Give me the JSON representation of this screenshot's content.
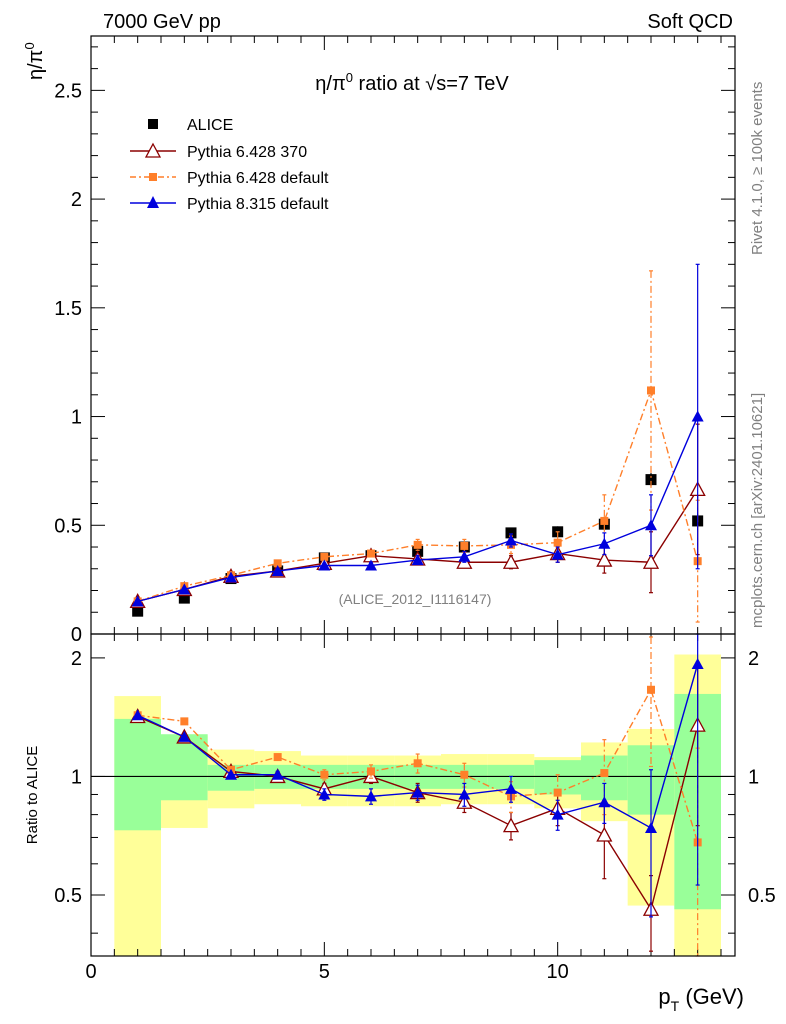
{
  "header": {
    "left": "7000 GeV pp",
    "right": "Soft QCD"
  },
  "side_labels": {
    "rivet": "Rivet 4.1.0, ≥ 100k events",
    "mcplots": "mcplots.cern.ch [arXiv:2401.10621]"
  },
  "colors": {
    "alice": "#000000",
    "py6_370": "#8b0000",
    "py6_default": "#ff7f2a",
    "py8": "#0000dd",
    "band_yellow": "#ffff99",
    "band_green": "#99ff99"
  },
  "chart_data": {
    "type": "scatter",
    "title_main": "η/π⁰ ratio at √s=7 TeV",
    "title_parts": {
      "pre": "η/π",
      "sup": "0",
      "mid": " ratio at ",
      "root": "√",
      "post": "s=7 TeV"
    },
    "ylabel_main": {
      "num": "η/π",
      "sup": "0"
    },
    "ylabel_ratio": "Ratio to ALICE",
    "xlabel": {
      "main": "p",
      "sub": "T",
      "unit": " (GeV)"
    },
    "watermark": "(ALICE_2012_I1116147)",
    "xlim": [
      0,
      13.8
    ],
    "ylim_main": [
      0,
      2.75
    ],
    "ylim_ratio": [
      0.35,
      2.3
    ],
    "x_ticks": [
      0,
      5,
      10
    ],
    "y_ticks_main": [
      0,
      0.5,
      1,
      1.5,
      2,
      2.5
    ],
    "y_tick_labels_main": [
      "0",
      "0.5",
      "1",
      "1.5",
      "2",
      "2.5"
    ],
    "y_ticks_ratio": [
      0.5,
      1,
      2
    ],
    "y_tick_labels_ratio": [
      "0.5",
      "1",
      "2"
    ],
    "legend": [
      {
        "label": "ALICE",
        "marker": "square-filled",
        "color": "#000000"
      },
      {
        "label": "Pythia 6.428 370",
        "marker": "triangle-open",
        "color": "#8b0000"
      },
      {
        "label": "Pythia 6.428 default",
        "marker": "square-small",
        "color": "#ff7f2a"
      },
      {
        "label": "Pythia 8.315 default",
        "marker": "triangle-filled",
        "color": "#0000dd"
      }
    ],
    "series": [
      {
        "name": "ALICE",
        "x": [
          1,
          2,
          3,
          4,
          5,
          6,
          7,
          8,
          9,
          10,
          11,
          12,
          13
        ],
        "y": [
          0.105,
          0.165,
          0.255,
          0.29,
          0.35,
          0.36,
          0.38,
          0.4,
          0.465,
          0.47,
          0.505,
          0.71,
          0.52
        ],
        "err": [
          0.01,
          0.01,
          0.01,
          0.01,
          0.015,
          0.015,
          0.02,
          0.02,
          0.02,
          0.025,
          0.025,
          0.03,
          0.03
        ]
      },
      {
        "name": "Pythia 6.428 370",
        "x": [
          1,
          2,
          3,
          4,
          5,
          6,
          7,
          8,
          9,
          10,
          11,
          12,
          13
        ],
        "y": [
          0.15,
          0.205,
          0.265,
          0.29,
          0.325,
          0.36,
          0.345,
          0.33,
          0.33,
          0.37,
          0.34,
          0.33,
          0.665
        ],
        "err": [
          0.005,
          0.005,
          0.005,
          0.005,
          0.01,
          0.015,
          0.02,
          0.025,
          0.03,
          0.04,
          0.06,
          0.14,
          0.3
        ]
      },
      {
        "name": "Pythia 6.428 default",
        "x": [
          1,
          2,
          3,
          4,
          5,
          6,
          7,
          8,
          9,
          10,
          11,
          12,
          13
        ],
        "y": [
          0.15,
          0.22,
          0.27,
          0.325,
          0.355,
          0.37,
          0.41,
          0.405,
          0.41,
          0.42,
          0.52,
          1.12,
          0.335
        ],
        "err": [
          0.005,
          0.005,
          0.005,
          0.01,
          0.01,
          0.015,
          0.025,
          0.03,
          0.04,
          0.05,
          0.12,
          0.55,
          0.28
        ]
      },
      {
        "name": "Pythia 8.315 default",
        "x": [
          1,
          2,
          3,
          4,
          5,
          6,
          7,
          8,
          9,
          10,
          11,
          12,
          13
        ],
        "y": [
          0.15,
          0.205,
          0.26,
          0.29,
          0.315,
          0.315,
          0.34,
          0.355,
          0.43,
          0.365,
          0.415,
          0.5,
          1.0
        ],
        "err": [
          0.005,
          0.005,
          0.005,
          0.01,
          0.01,
          0.015,
          0.02,
          0.025,
          0.03,
          0.035,
          0.05,
          0.14,
          0.7
        ]
      }
    ],
    "ratio_series": [
      {
        "name": "Pythia 6.428 370",
        "x": [
          1,
          2,
          3,
          4,
          5,
          6,
          7,
          8,
          9,
          10,
          11,
          12,
          13
        ],
        "y": [
          1.42,
          1.26,
          1.03,
          1.0,
          0.93,
          1.0,
          0.91,
          0.86,
          0.75,
          0.83,
          0.71,
          0.46,
          1.35
        ],
        "err": [
          0.01,
          0.01,
          0.01,
          0.02,
          0.03,
          0.04,
          0.05,
          0.05,
          0.06,
          0.08,
          0.16,
          0.1,
          0.6
        ]
      },
      {
        "name": "Pythia 6.428 default",
        "x": [
          1,
          2,
          3,
          4,
          5,
          6,
          7,
          8,
          9,
          10,
          11,
          12,
          13
        ],
        "y": [
          1.43,
          1.38,
          1.04,
          1.12,
          1.01,
          1.03,
          1.08,
          1.01,
          0.89,
          0.91,
          1.02,
          1.66,
          0.68
        ],
        "err": [
          0.01,
          0.01,
          0.01,
          0.02,
          0.03,
          0.04,
          0.06,
          0.07,
          0.08,
          0.1,
          0.22,
          0.6,
          0.5
        ]
      },
      {
        "name": "Pythia 8.315 default",
        "x": [
          1,
          2,
          3,
          4,
          5,
          6,
          7,
          8,
          9,
          10,
          11,
          12,
          13
        ],
        "y": [
          1.43,
          1.26,
          1.01,
          1.01,
          0.9,
          0.89,
          0.91,
          0.9,
          0.93,
          0.8,
          0.86,
          0.74,
          1.93
        ],
        "err": [
          0.01,
          0.01,
          0.01,
          0.02,
          0.03,
          0.04,
          0.04,
          0.06,
          0.07,
          0.07,
          0.1,
          0.3,
          1.4
        ]
      }
    ],
    "bands": {
      "bins": [
        [
          0.5,
          1.5
        ],
        [
          1.5,
          2.5
        ],
        [
          2.5,
          3.5
        ],
        [
          3.5,
          4.5
        ],
        [
          4.5,
          5.5
        ],
        [
          5.5,
          6.5
        ],
        [
          6.5,
          7.5
        ],
        [
          7.5,
          8.5
        ],
        [
          8.5,
          9.5
        ],
        [
          9.5,
          10.5
        ],
        [
          10.5,
          11.5
        ],
        [
          11.5,
          12.5
        ],
        [
          12.5,
          13.5
        ]
      ],
      "yellow": [
        [
          0.35,
          1.6
        ],
        [
          0.74,
          1.27
        ],
        [
          0.83,
          1.17
        ],
        [
          0.85,
          1.16
        ],
        [
          0.84,
          1.13
        ],
        [
          0.84,
          1.13
        ],
        [
          0.84,
          1.13
        ],
        [
          0.85,
          1.14
        ],
        [
          0.85,
          1.14
        ],
        [
          0.83,
          1.12
        ],
        [
          0.77,
          1.22
        ],
        [
          0.47,
          1.32
        ],
        [
          0.35,
          2.04
        ]
      ],
      "green": [
        [
          0.73,
          1.4
        ],
        [
          0.87,
          1.28
        ],
        [
          0.92,
          1.07
        ],
        [
          0.93,
          1.07
        ],
        [
          0.93,
          1.07
        ],
        [
          0.93,
          1.07
        ],
        [
          0.93,
          1.07
        ],
        [
          0.93,
          1.07
        ],
        [
          0.93,
          1.07
        ],
        [
          0.9,
          1.1
        ],
        [
          0.87,
          1.13
        ],
        [
          0.8,
          1.2
        ],
        [
          0.46,
          1.62
        ]
      ]
    }
  }
}
